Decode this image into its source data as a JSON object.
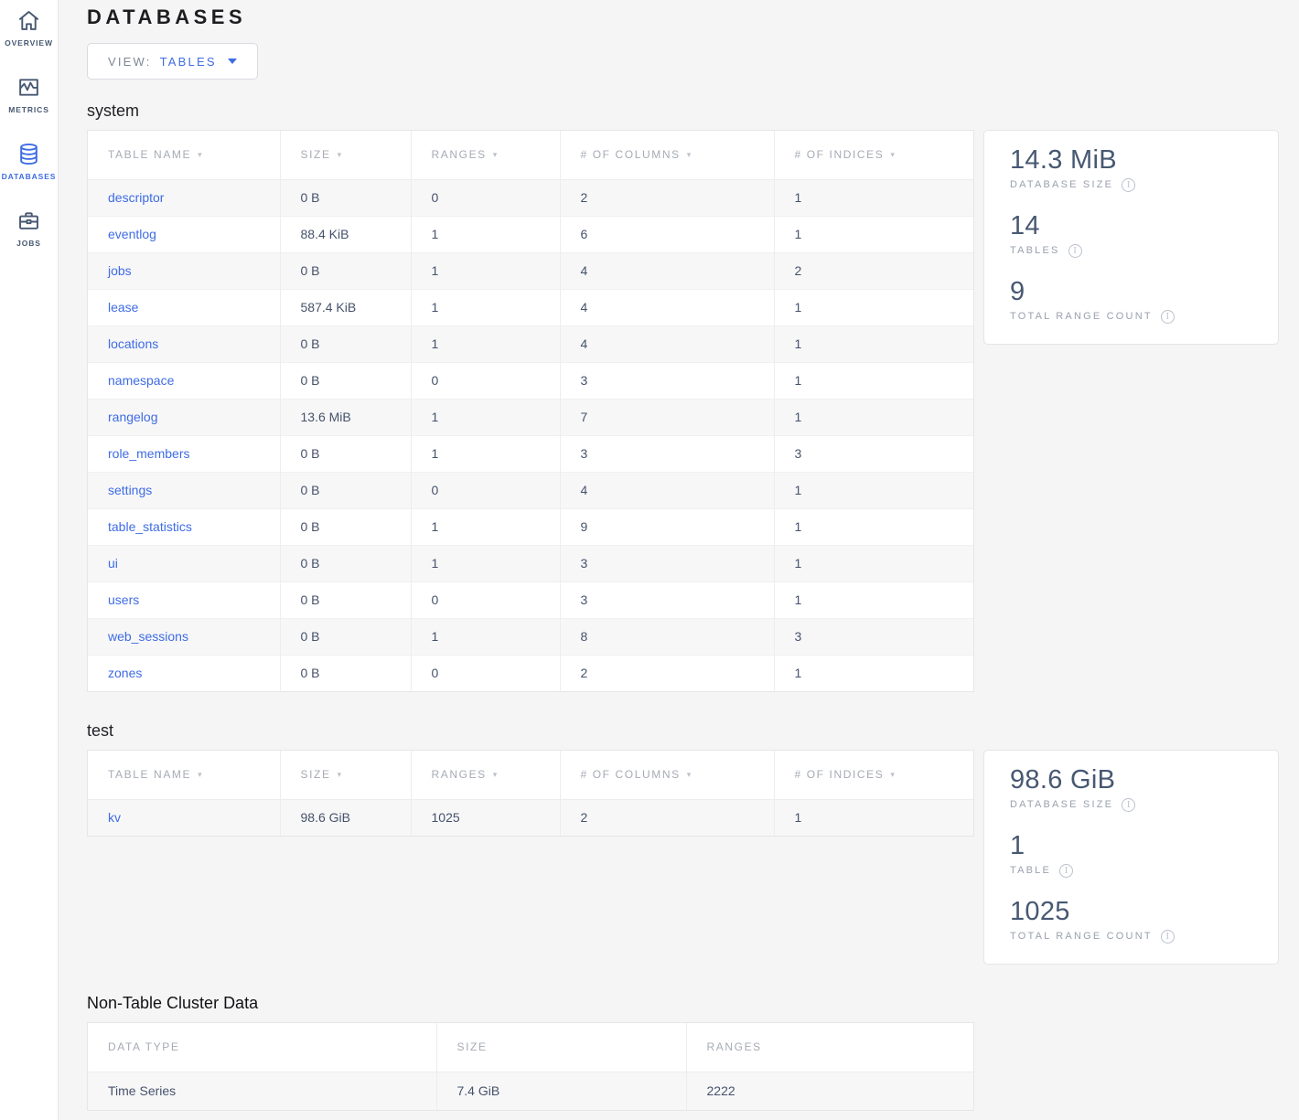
{
  "colors": {
    "accent": "#3e6ce4",
    "value_text": "#46526b",
    "summary_value": "#475872",
    "page_background": "#f5f5f6"
  },
  "sidebar": {
    "items": [
      {
        "label": "OVERVIEW",
        "icon": "home-icon",
        "active": false
      },
      {
        "label": "METRICS",
        "icon": "metrics-icon",
        "active": false
      },
      {
        "label": "DATABASES",
        "icon": "database-icon",
        "active": true
      },
      {
        "label": "JOBS",
        "icon": "briefcase-icon",
        "active": false
      }
    ]
  },
  "header": {
    "title": "DATABASES",
    "view_label": "VIEW:",
    "view_value": "TABLES"
  },
  "databases": [
    {
      "name": "system",
      "columns": [
        "TABLE NAME",
        "SIZE",
        "RANGES",
        "# OF COLUMNS",
        "# OF INDICES"
      ],
      "rows": [
        [
          "descriptor",
          "0 B",
          "0",
          "2",
          "1"
        ],
        [
          "eventlog",
          "88.4 KiB",
          "1",
          "6",
          "1"
        ],
        [
          "jobs",
          "0 B",
          "1",
          "4",
          "2"
        ],
        [
          "lease",
          "587.4 KiB",
          "1",
          "4",
          "1"
        ],
        [
          "locations",
          "0 B",
          "1",
          "4",
          "1"
        ],
        [
          "namespace",
          "0 B",
          "0",
          "3",
          "1"
        ],
        [
          "rangelog",
          "13.6 MiB",
          "1",
          "7",
          "1"
        ],
        [
          "role_members",
          "0 B",
          "1",
          "3",
          "3"
        ],
        [
          "settings",
          "0 B",
          "0",
          "4",
          "1"
        ],
        [
          "table_statistics",
          "0 B",
          "1",
          "9",
          "1"
        ],
        [
          "ui",
          "0 B",
          "1",
          "3",
          "1"
        ],
        [
          "users",
          "0 B",
          "0",
          "3",
          "1"
        ],
        [
          "web_sessions",
          "0 B",
          "1",
          "8",
          "3"
        ],
        [
          "zones",
          "0 B",
          "0",
          "2",
          "1"
        ]
      ],
      "summary": [
        {
          "value": "14.3 MiB",
          "label": "DATABASE SIZE"
        },
        {
          "value": "14",
          "label": "TABLES"
        },
        {
          "value": "9",
          "label": "TOTAL RANGE COUNT"
        }
      ]
    },
    {
      "name": "test",
      "columns": [
        "TABLE NAME",
        "SIZE",
        "RANGES",
        "# OF COLUMNS",
        "# OF INDICES"
      ],
      "rows": [
        [
          "kv",
          "98.6 GiB",
          "1025",
          "2",
          "1"
        ]
      ],
      "summary": [
        {
          "value": "98.6 GiB",
          "label": "DATABASE SIZE"
        },
        {
          "value": "1",
          "label": "TABLE"
        },
        {
          "value": "1025",
          "label": "TOTAL RANGE COUNT"
        }
      ]
    }
  ],
  "non_table": {
    "title": "Non-Table Cluster Data",
    "columns": [
      "DATA TYPE",
      "SIZE",
      "RANGES"
    ],
    "rows": [
      [
        "Time Series",
        "7.4 GiB",
        "2222"
      ]
    ]
  },
  "icons": {
    "info": "i",
    "sort_arrow": "▾"
  }
}
